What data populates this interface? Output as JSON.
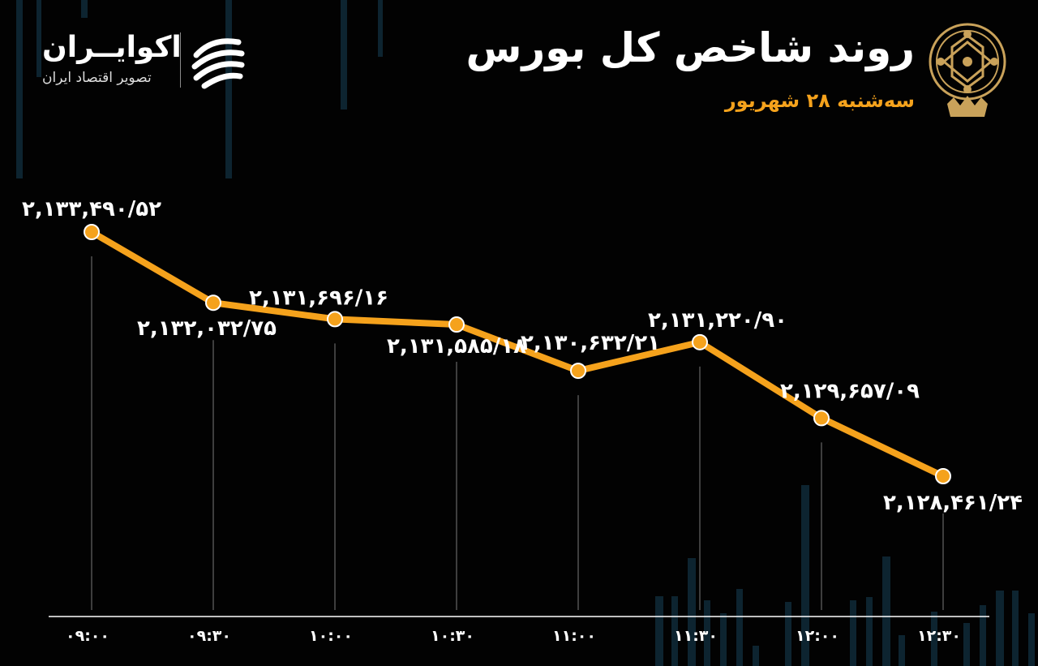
{
  "header": {
    "title": "روند شاخص کل بورس",
    "subtitle": "سه‌شنبه ۲۸ شهریور"
  },
  "brand": {
    "name": "اکوایــران",
    "tagline": "تصویر اقتصاد ایران"
  },
  "colors": {
    "background": "#020202",
    "line": "#f5a21c",
    "marker_fill": "#f5a21c",
    "marker_stroke": "#ffffff",
    "labels": "#ffffff",
    "bars_decor": "#0d2430"
  },
  "chart_data": {
    "type": "line",
    "categories": [
      "۰۹:۰۰",
      "۰۹:۳۰",
      "۱۰:۰۰",
      "۱۰:۳۰",
      "۱۱:۰۰",
      "۱۱:۳۰",
      "۱۲:۰۰",
      "۱۲:۳۰"
    ],
    "values": [
      2133490.52,
      2132032.75,
      2131696.16,
      2131585.18,
      2130632.21,
      2131220.9,
      2129657.09,
      2128461.24
    ],
    "value_labels": [
      "۲,۱۳۳,۴۹۰/۵۲",
      "۲,۱۳۲,۰۳۲/۷۵",
      "۲,۱۳۱,۶۹۶/۱۶",
      "۲,۱۳۱,۵۸۵/۱۸",
      "۲,۱۳۰,۶۳۲/۲۱",
      "۲,۱۳۱,۲۲۰/۹۰",
      "۲,۱۲۹,۶۵۷/۰۹",
      "۲,۱۲۸,۴۶۱/۲۴"
    ],
    "label_position": [
      "above",
      "below",
      "above",
      "below",
      "above",
      "above",
      "above",
      "below"
    ],
    "grid": false,
    "legend": "none"
  }
}
